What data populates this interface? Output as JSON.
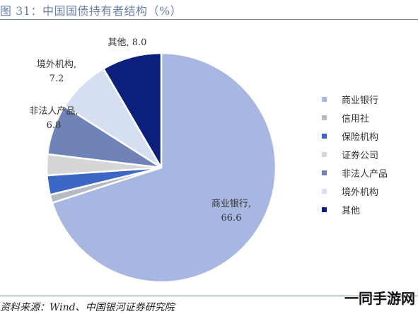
{
  "header": {
    "title": "图 31：中国国债持有者结构（%）"
  },
  "footer": {
    "source": "资料来源：Wind、中国银河证券研究院",
    "watermark": "一同手游网"
  },
  "chart_data": {
    "type": "pie",
    "title": "图 31：中国国债持有者结构（%）",
    "start_angle_deg": 0,
    "direction": "clockwise",
    "legend_position": "right",
    "slices": [
      {
        "name": "商业银行",
        "value": 66.6,
        "color": "#a8b7e2",
        "label_lines": [
          "商业银行,",
          "66.6"
        ],
        "label_inside": true
      },
      {
        "name": "信用社",
        "value": 1.1,
        "color": "#b6bac2",
        "label_lines": [],
        "label_inside": false
      },
      {
        "name": "保险机构",
        "value": 2.6,
        "color": "#3d67c7",
        "label_lines": [],
        "label_inside": false
      },
      {
        "name": "证券公司",
        "value": 2.8,
        "color": "#d6d6d6",
        "label_lines": [],
        "label_inside": false
      },
      {
        "name": "非法人产品",
        "value": 6.8,
        "color": "#6f83b8",
        "label_lines": [
          "非法人产品,",
          "6.8"
        ],
        "label_inside": false
      },
      {
        "name": "境外机构",
        "value": 7.2,
        "color": "#d5dff1",
        "label_lines": [
          "境外机构,",
          "7.2"
        ],
        "label_inside": false
      },
      {
        "name": "其他",
        "value": 8.0,
        "color": "#0d1f7c",
        "label_lines": [
          "其他, 8.0"
        ],
        "label_inside": false
      }
    ]
  }
}
